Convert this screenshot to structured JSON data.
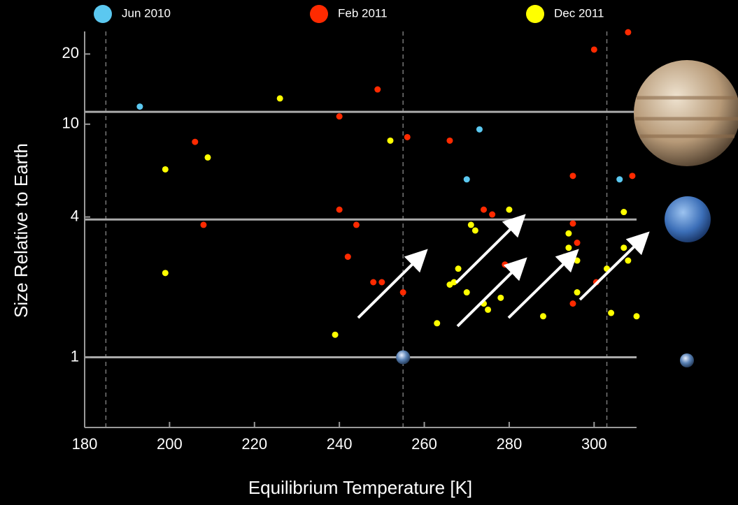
{
  "chart_data": {
    "type": "scatter",
    "x_label": "Equilibrium Temperature [K]",
    "y_label": "Size Relative to Earth",
    "xlim": [
      180,
      310
    ],
    "ylim": [
      0.5,
      25
    ],
    "y_scale": "log",
    "xticks": [
      180,
      200,
      220,
      240,
      260,
      280,
      300
    ],
    "yticks": [
      1,
      4,
      10,
      20
    ],
    "legend": "top",
    "hlines": [
      1,
      3.9,
      11.3
    ],
    "vlines": [
      185,
      255,
      303
    ],
    "reference_point": {
      "x": 255,
      "y": 1
    },
    "series": [
      {
        "name": "Jun 2010",
        "color": "#5bc8f0",
        "x": [
          193,
          273,
          270,
          306
        ],
        "values": [
          11.9,
          9.5,
          5.8,
          5.8
        ]
      },
      {
        "name": "Feb 2011",
        "color": "#ff2a00",
        "x": [
          308,
          300,
          249,
          240,
          206,
          256,
          266,
          295,
          309,
          240,
          274,
          276,
          208,
          244,
          295,
          296,
          242,
          279,
          248,
          250,
          255,
          300.5,
          295
        ],
        "values": [
          24.8,
          20.9,
          14.1,
          10.8,
          8.4,
          8.8,
          8.5,
          6.0,
          6.0,
          4.3,
          4.3,
          4.1,
          3.7,
          3.7,
          3.75,
          3.1,
          2.7,
          2.5,
          2.1,
          2.1,
          1.9,
          2.1,
          1.7
        ]
      },
      {
        "name": "Dec 2011",
        "color": "#ffff00",
        "x": [
          226,
          252,
          209,
          199,
          280,
          307,
          271,
          272,
          294,
          294,
          307,
          293,
          296,
          308,
          268,
          303,
          199,
          267,
          266,
          296,
          270,
          278,
          274,
          275,
          304,
          263,
          288,
          310,
          239
        ],
        "values": [
          12.9,
          8.5,
          7.2,
          6.4,
          4.3,
          4.2,
          3.7,
          3.5,
          3.4,
          2.95,
          2.95,
          2.7,
          2.6,
          2.6,
          2.4,
          2.4,
          2.3,
          2.1,
          2.05,
          1.9,
          1.9,
          1.8,
          1.7,
          1.6,
          1.55,
          1.4,
          1.5,
          1.5,
          1.25
        ]
      }
    ]
  }
}
